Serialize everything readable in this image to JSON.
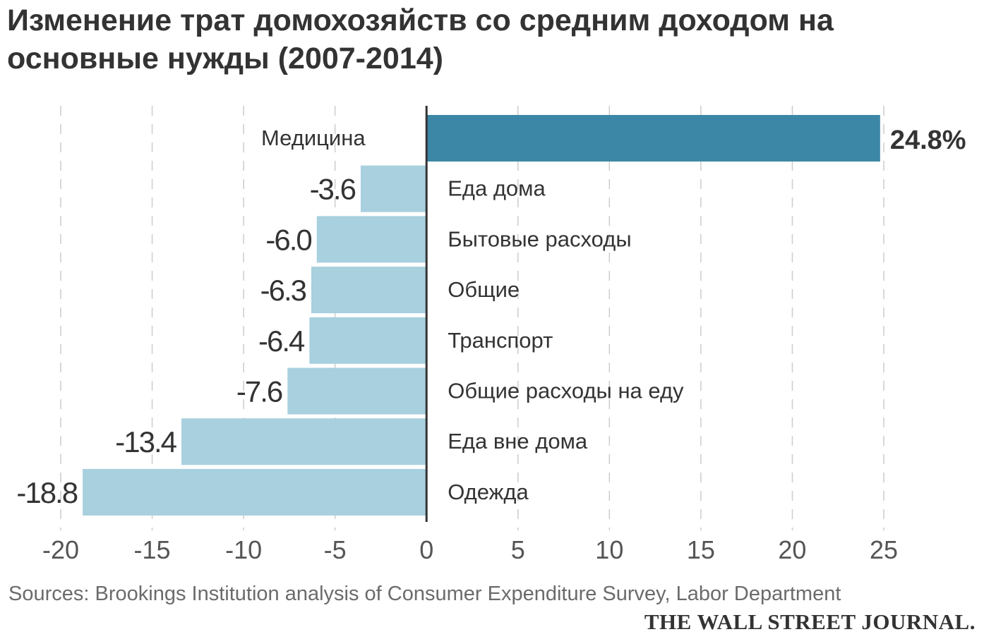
{
  "chart_data": {
    "type": "bar",
    "orientation": "horizontal",
    "title": "Изменение трат домохозяйств со средним доходом на основные нужды (2007-2014)",
    "categories": [
      "Медицина",
      "Еда дома",
      "Бытовые расходы",
      "Общие",
      "Транспорт",
      "Общие расходы на еду",
      "Еда вне дома",
      "Одежда"
    ],
    "values": [
      24.8,
      -3.6,
      -6.0,
      -6.3,
      -6.4,
      -7.6,
      -13.4,
      -18.8
    ],
    "value_labels": [
      "24.8%",
      "-3.6",
      "-6.0",
      "-6.3",
      "-6.4",
      "-7.6",
      "-13.4",
      "-18.8"
    ],
    "xlim": [
      -20,
      25
    ],
    "xticks": [
      -20,
      -15,
      -10,
      -5,
      0,
      5,
      10,
      15,
      20,
      25
    ],
    "xtick_labels": [
      "-20",
      "-15",
      "-10",
      "-5",
      "0",
      "5",
      "10",
      "15",
      "20",
      "25"
    ],
    "grid": "vertical dashed",
    "colors": {
      "positive": "#3d87a6",
      "negative": "#a8d0de",
      "zero_line": "#333333",
      "grid": "#cccccc"
    }
  },
  "source": "Sources: Brookings Institution analysis of Consumer Expenditure Survey, Labor Department",
  "publisher": "THE WALL STREET JOURNAL."
}
